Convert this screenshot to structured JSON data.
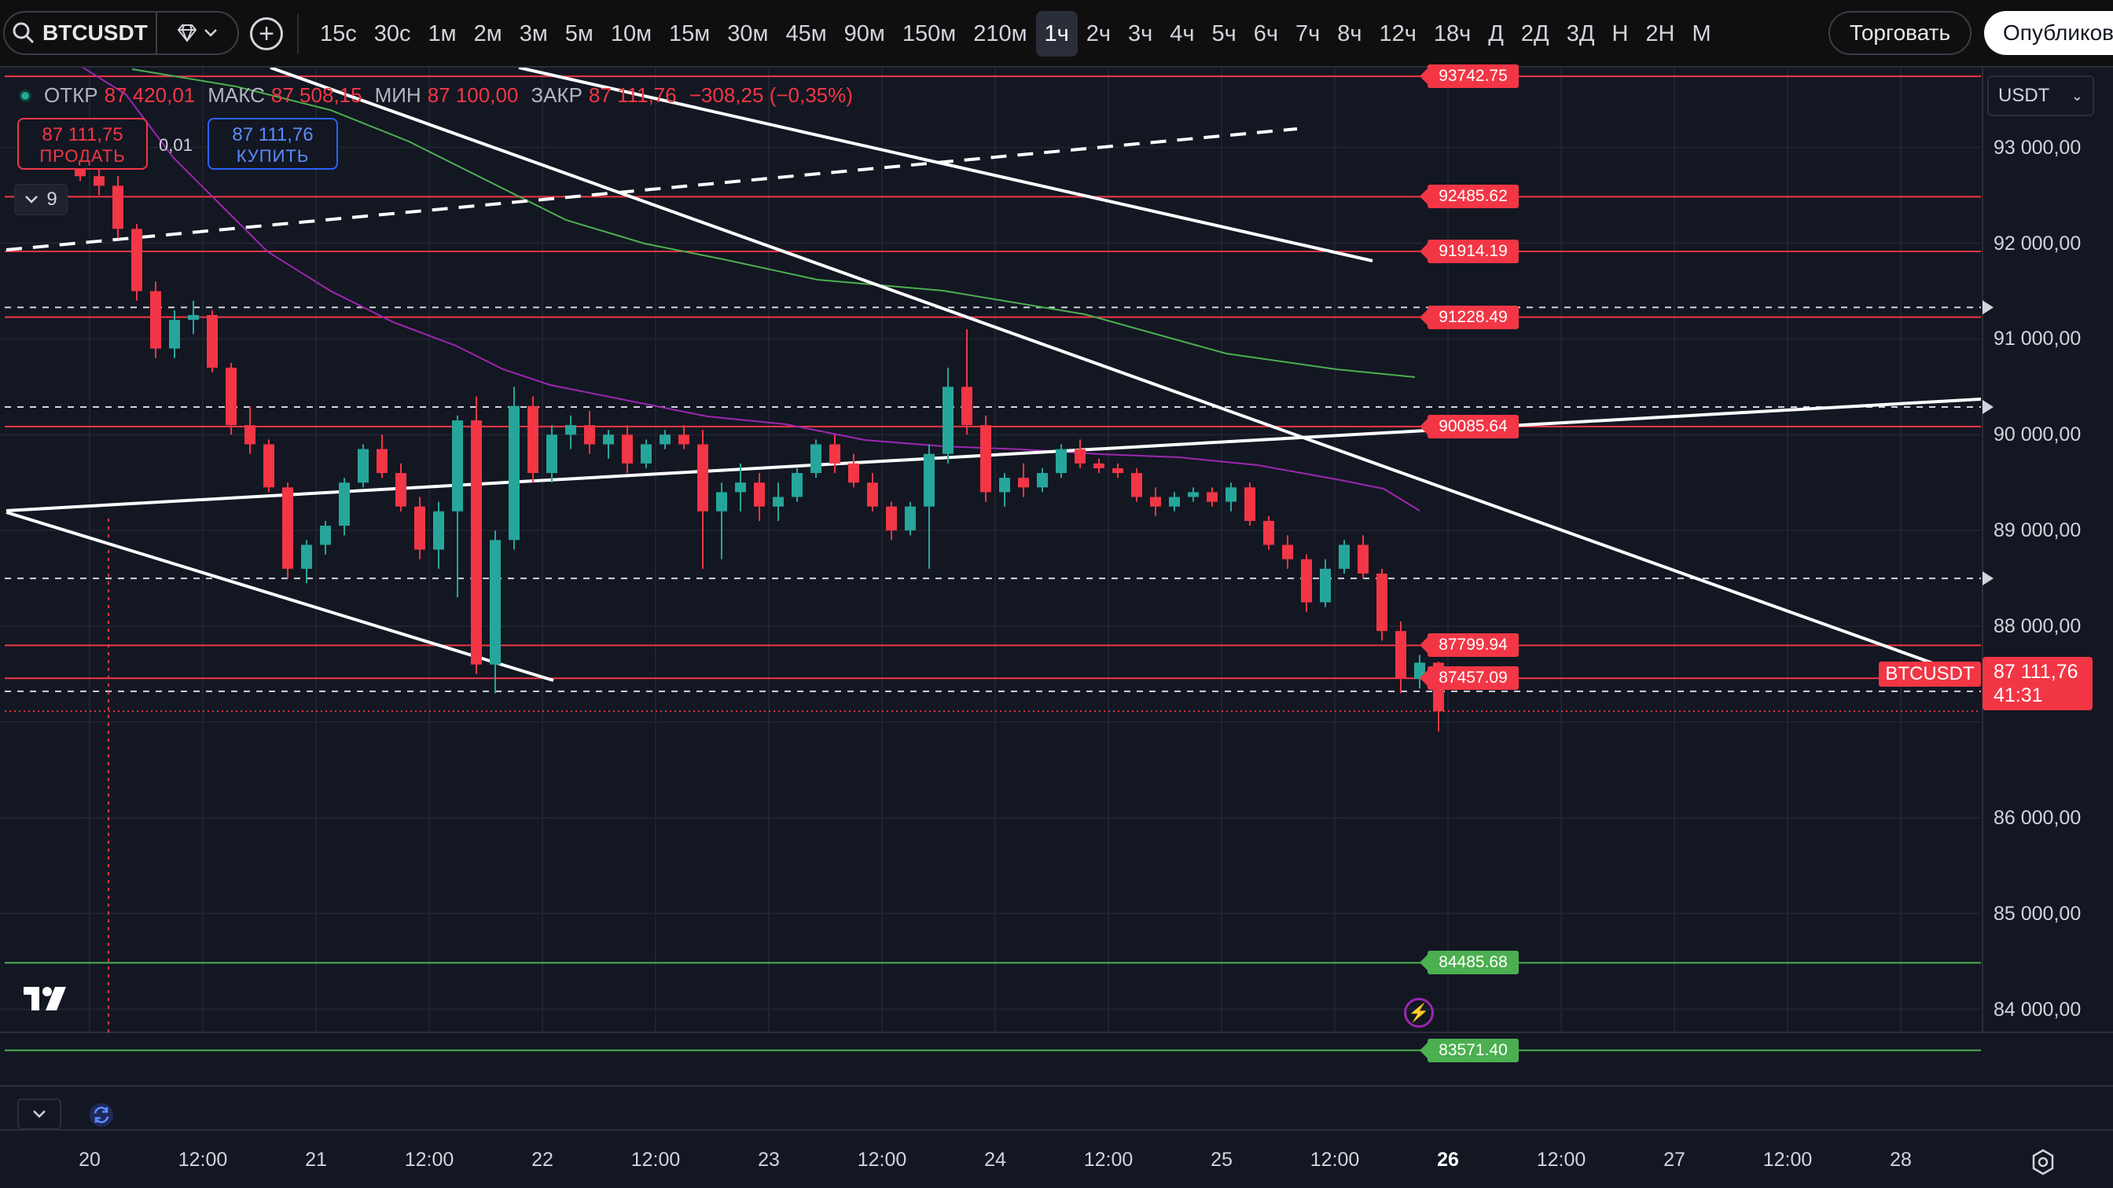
{
  "toolbar": {
    "symbol": "BTCUSDT",
    "intervals": [
      "15с",
      "30с",
      "1м",
      "2м",
      "3м",
      "5м",
      "10м",
      "15м",
      "30м",
      "45м",
      "90м",
      "150м",
      "210м",
      "1ч",
      "2ч",
      "3ч",
      "4ч",
      "5ч",
      "6ч",
      "7ч",
      "8ч",
      "12ч",
      "18ч",
      "Д",
      "2Д",
      "3Д",
      "Н",
      "2Н",
      "М"
    ],
    "active_interval": "1ч",
    "trade_label": "Торговать",
    "publish_label": "Опубликовать",
    "icons": {
      "search": "search-icon",
      "gem": "gem-icon",
      "add": "plus-icon"
    }
  },
  "legend": {
    "open_label": "ОТКР",
    "open": "87 420,01",
    "high_label": "МАКС",
    "high": "87 508,15",
    "low_label": "МИН",
    "low": "87 100,00",
    "close_label": "ЗАКР",
    "close": "87 111,76",
    "change": "−308,25 (−0,35%)"
  },
  "order": {
    "sell_price": "87 111,75",
    "sell_label": "ПРОДАТЬ",
    "spread": "0,01",
    "buy_price": "87 111,76",
    "buy_label": "КУПИТЬ",
    "indicators_count": "9"
  },
  "price_scale": {
    "currency": "USDT",
    "labels": [
      "93 000,00",
      "92 000,00",
      "91 000,00",
      "90 000,00",
      "89 000,00",
      "88 000,00",
      "86 000,00",
      "85 000,00",
      "84 000,00"
    ],
    "last_price": "87 111,76",
    "countdown": "41:31",
    "symbol_tag": "BTCUSDT"
  },
  "levels": {
    "red": [
      "93742.75",
      "92485.62",
      "91914.19",
      "91228.49",
      "90085.64",
      "87799.94",
      "87457.09"
    ],
    "green": [
      "84485.68",
      "83571.40"
    ]
  },
  "time_axis": {
    "labels": [
      "20",
      "12:00",
      "21",
      "12:00",
      "22",
      "12:00",
      "23",
      "12:00",
      "24",
      "12:00",
      "25",
      "12:00",
      "26",
      "12:00",
      "27",
      "12:00",
      "28"
    ],
    "bold": "26"
  },
  "colors": {
    "background": "#131722",
    "up": "#26a69a",
    "down": "#f23645",
    "level_red": "#f23645",
    "level_green": "#4caf50",
    "ma_purple": "#9c27b0",
    "ma_green": "#4caf50",
    "trendline": "#ffffff"
  },
  "chart_data": {
    "type": "candlestick",
    "symbol": "BTCUSDT",
    "interval": "1ч",
    "ylim": [
      83200,
      93900
    ],
    "x_range": [
      "20",
      "28"
    ],
    "horizontal_levels": [
      93742.75,
      92485.62,
      91914.19,
      91228.49,
      90085.64,
      87799.94,
      87457.09,
      84485.68,
      83571.4
    ],
    "dashed_levels": [
      91330,
      90290,
      88500,
      87320
    ],
    "candles": [
      [
        92780,
        92900,
        92650,
        92700
      ],
      [
        92700,
        92850,
        92500,
        92600
      ],
      [
        92600,
        92700,
        92050,
        92150
      ],
      [
        92150,
        92200,
        91400,
        91500
      ],
      [
        91500,
        91600,
        90800,
        90900
      ],
      [
        90900,
        91300,
        90800,
        91200
      ],
      [
        91200,
        91400,
        91050,
        91250
      ],
      [
        91250,
        91300,
        90650,
        90700
      ],
      [
        90700,
        90750,
        90000,
        90100
      ],
      [
        90100,
        90300,
        89800,
        89900
      ],
      [
        89900,
        89950,
        89400,
        89450
      ],
      [
        89450,
        89500,
        88500,
        88600
      ],
      [
        88600,
        88900,
        88450,
        88850
      ],
      [
        88850,
        89100,
        88750,
        89050
      ],
      [
        89050,
        89550,
        88950,
        89500
      ],
      [
        89500,
        89900,
        89450,
        89850
      ],
      [
        89850,
        90000,
        89550,
        89600
      ],
      [
        89600,
        89700,
        89200,
        89250
      ],
      [
        89250,
        89350,
        88700,
        88800
      ],
      [
        88800,
        89300,
        88600,
        89200
      ],
      [
        89200,
        90200,
        88300,
        90150
      ],
      [
        90150,
        90400,
        87500,
        87600
      ],
      [
        87600,
        89000,
        87300,
        88900
      ],
      [
        88900,
        90500,
        88800,
        90300
      ],
      [
        90300,
        90400,
        89500,
        89600
      ],
      [
        89600,
        90100,
        89500,
        90000
      ],
      [
        90000,
        90200,
        89850,
        90100
      ],
      [
        90100,
        90250,
        89800,
        89900
      ],
      [
        89900,
        90050,
        89750,
        90000
      ],
      [
        90000,
        90100,
        89600,
        89700
      ],
      [
        89700,
        89950,
        89650,
        89900
      ],
      [
        89900,
        90050,
        89850,
        90000
      ],
      [
        90000,
        90100,
        89850,
        89900
      ],
      [
        89900,
        90050,
        88600,
        89200
      ],
      [
        89200,
        89500,
        88700,
        89400
      ],
      [
        89400,
        89700,
        89200,
        89500
      ],
      [
        89500,
        89600,
        89100,
        89250
      ],
      [
        89250,
        89500,
        89100,
        89350
      ],
      [
        89350,
        89650,
        89300,
        89600
      ],
      [
        89600,
        89950,
        89550,
        89900
      ],
      [
        89900,
        90000,
        89600,
        89700
      ],
      [
        89700,
        89800,
        89450,
        89500
      ],
      [
        89500,
        89600,
        89200,
        89250
      ],
      [
        89250,
        89300,
        88900,
        89000
      ],
      [
        89000,
        89300,
        88950,
        89250
      ],
      [
        89250,
        89900,
        88600,
        89800
      ],
      [
        89800,
        90700,
        89700,
        90500
      ],
      [
        90500,
        91100,
        90000,
        90100
      ],
      [
        90100,
        90200,
        89300,
        89400
      ],
      [
        89400,
        89600,
        89250,
        89550
      ],
      [
        89550,
        89700,
        89350,
        89450
      ],
      [
        89450,
        89650,
        89400,
        89600
      ],
      [
        89600,
        89900,
        89550,
        89850
      ],
      [
        89850,
        89950,
        89650,
        89700
      ],
      [
        89700,
        89750,
        89600,
        89650
      ],
      [
        89650,
        89700,
        89550,
        89600
      ],
      [
        89600,
        89650,
        89300,
        89350
      ],
      [
        89350,
        89450,
        89150,
        89250
      ],
      [
        89250,
        89400,
        89200,
        89350
      ],
      [
        89350,
        89450,
        89300,
        89400
      ],
      [
        89400,
        89450,
        89250,
        89300
      ],
      [
        89300,
        89500,
        89200,
        89450
      ],
      [
        89450,
        89500,
        89050,
        89100
      ],
      [
        89100,
        89150,
        88800,
        88850
      ],
      [
        88850,
        88950,
        88600,
        88700
      ],
      [
        88700,
        88750,
        88150,
        88250
      ],
      [
        88250,
        88700,
        88200,
        88600
      ],
      [
        88600,
        88900,
        88550,
        88850
      ],
      [
        88850,
        88950,
        88500,
        88550
      ],
      [
        88550,
        88600,
        87850,
        87950
      ],
      [
        87950,
        88050,
        87300,
        87450
      ],
      [
        87450,
        87700,
        87350,
        87620
      ],
      [
        87620,
        87630,
        86900,
        87112
      ]
    ]
  }
}
